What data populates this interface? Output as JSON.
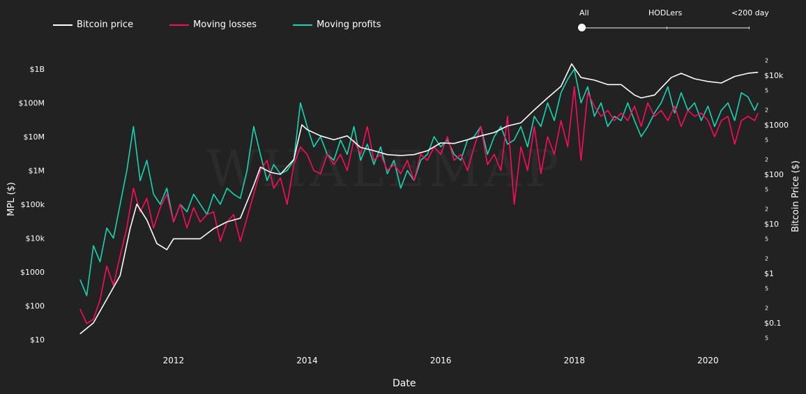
{
  "legend": {
    "btc_label": "Bitcoin price",
    "losses_label": "Moving losses",
    "profits_label": "Moving profits"
  },
  "slider": {
    "options": [
      "All",
      "HODLers",
      "<200 day"
    ],
    "selected": "All"
  },
  "colors": {
    "background": "#222222",
    "btc": "#ffffff",
    "losses": "#ff0a5f",
    "profits": "#15d6b4"
  },
  "watermark": "WHALEMAP",
  "chart_data": {
    "type": "line",
    "xlabel": "Date",
    "ylabel_left": "MPL ($)",
    "ylabel_right": "Bitcoin Price ($)",
    "y_scale": "log",
    "x_ticks": [
      "2012",
      "2014",
      "2016",
      "2018",
      "2020"
    ],
    "y_left_ticks": [
      "$10",
      "$100",
      "$1000",
      "$10k",
      "$100k",
      "$1M",
      "$10M",
      "$100M",
      "$1B"
    ],
    "y_left_values": [
      10,
      100,
      1000,
      10000,
      100000,
      1000000,
      10000000,
      100000000,
      1000000000
    ],
    "y_right_ticks": [
      "$0.1",
      "$1",
      "$10",
      "$100",
      "$1000",
      "$10k"
    ],
    "y_right_values": [
      0.1,
      1,
      10,
      100,
      1000,
      10000
    ],
    "y_right_minor_ticks": [
      "5",
      "2"
    ],
    "y_right_minor_values": [
      0.05,
      0.2,
      0.5,
      2,
      5,
      20,
      50,
      200,
      500,
      2000,
      5000,
      20000
    ],
    "x_range": [
      2010.55,
      2020.8
    ],
    "y_left_range": [
      10,
      3000000000
    ],
    "y_right_range": [
      0.04,
      25000
    ],
    "series": [
      {
        "name": "Bitcoin price",
        "axis": "right",
        "x": [
          2010.6,
          2010.8,
          2011.0,
          2011.2,
          2011.35,
          2011.45,
          2011.6,
          2011.75,
          2011.9,
          2012.0,
          2012.2,
          2012.4,
          2012.6,
          2012.8,
          2013.0,
          2013.2,
          2013.3,
          2013.45,
          2013.6,
          2013.8,
          2013.92,
          2014.0,
          2014.2,
          2014.4,
          2014.6,
          2014.8,
          2015.0,
          2015.2,
          2015.4,
          2015.6,
          2015.8,
          2016.0,
          2016.2,
          2016.4,
          2016.6,
          2016.8,
          2017.0,
          2017.2,
          2017.4,
          2017.6,
          2017.8,
          2017.96,
          2018.1,
          2018.3,
          2018.5,
          2018.7,
          2018.9,
          2019.0,
          2019.2,
          2019.45,
          2019.6,
          2019.8,
          2020.0,
          2020.2,
          2020.4,
          2020.6,
          2020.75
        ],
        "values": [
          0.06,
          0.1,
          0.3,
          0.9,
          8,
          25,
          12,
          4,
          3,
          5,
          5,
          5,
          8,
          11,
          13,
          60,
          140,
          110,
          100,
          200,
          1000,
          800,
          600,
          500,
          600,
          350,
          300,
          250,
          240,
          250,
          300,
          430,
          420,
          500,
          600,
          700,
          950,
          1100,
          2000,
          3500,
          6000,
          17000,
          9000,
          8000,
          6500,
          6500,
          4000,
          3500,
          4000,
          9000,
          11000,
          8500,
          7500,
          7000,
          9500,
          11000,
          11500
        ]
      },
      {
        "name": "Moving losses",
        "axis": "left",
        "x": [
          2010.6,
          2010.7,
          2010.8,
          2010.9,
          2011.0,
          2011.1,
          2011.2,
          2011.3,
          2011.4,
          2011.5,
          2011.6,
          2011.7,
          2011.8,
          2011.9,
          2012.0,
          2012.1,
          2012.2,
          2012.3,
          2012.4,
          2012.5,
          2012.6,
          2012.7,
          2012.8,
          2012.9,
          2013.0,
          2013.1,
          2013.2,
          2013.3,
          2013.4,
          2013.5,
          2013.6,
          2013.7,
          2013.8,
          2013.9,
          2014.0,
          2014.1,
          2014.2,
          2014.3,
          2014.4,
          2014.5,
          2014.6,
          2014.7,
          2014.8,
          2014.9,
          2015.0,
          2015.1,
          2015.2,
          2015.3,
          2015.4,
          2015.5,
          2015.6,
          2015.7,
          2015.8,
          2015.9,
          2016.0,
          2016.1,
          2016.2,
          2016.3,
          2016.4,
          2016.5,
          2016.6,
          2016.7,
          2016.8,
          2016.9,
          2017.0,
          2017.1,
          2017.2,
          2017.3,
          2017.4,
          2017.5,
          2017.6,
          2017.7,
          2017.8,
          2017.9,
          2018.0,
          2018.1,
          2018.2,
          2018.3,
          2018.4,
          2018.5,
          2018.6,
          2018.7,
          2018.8,
          2018.9,
          2019.0,
          2019.1,
          2019.2,
          2019.3,
          2019.4,
          2019.5,
          2019.6,
          2019.7,
          2019.8,
          2019.9,
          2020.0,
          2020.1,
          2020.2,
          2020.3,
          2020.4,
          2020.5,
          2020.6,
          2020.7,
          2020.75
        ],
        "values": [
          80,
          30,
          40,
          150,
          1500,
          400,
          3000,
          20000,
          300000,
          60000,
          150000,
          20000,
          80000,
          200000,
          30000,
          100000,
          20000,
          80000,
          30000,
          50000,
          60000,
          8000,
          30000,
          50000,
          8000,
          40000,
          200000,
          1000000,
          2000000,
          300000,
          600000,
          100000,
          1500000,
          5000000,
          3000000,
          1000000,
          800000,
          3000000,
          1500000,
          3000000,
          1000000,
          8000000,
          3000000,
          20000000,
          2000000,
          3000000,
          1000000,
          1500000,
          800000,
          2000000,
          500000,
          3000000,
          2000000,
          5000000,
          3000000,
          10000000,
          2000000,
          3000000,
          1000000,
          5000000,
          20000000,
          1500000,
          3000000,
          1000000,
          40000000,
          100000,
          5000000,
          1000000,
          20000000,
          800000,
          10000000,
          3000000,
          30000000,
          5000000,
          300000000,
          2000000,
          200000000,
          80000000,
          40000000,
          60000000,
          30000000,
          50000000,
          30000000,
          80000000,
          20000000,
          100000000,
          40000000,
          60000000,
          30000000,
          80000000,
          20000000,
          60000000,
          40000000,
          50000000,
          30000000,
          10000000,
          30000000,
          40000000,
          6000000,
          30000000,
          40000000,
          30000000,
          50000000
        ]
      },
      {
        "name": "Moving profits",
        "axis": "left",
        "x": [
          2010.6,
          2010.7,
          2010.8,
          2010.9,
          2011.0,
          2011.1,
          2011.2,
          2011.3,
          2011.4,
          2011.5,
          2011.6,
          2011.7,
          2011.8,
          2011.9,
          2012.0,
          2012.1,
          2012.2,
          2012.3,
          2012.4,
          2012.5,
          2012.6,
          2012.7,
          2012.8,
          2012.9,
          2013.0,
          2013.1,
          2013.2,
          2013.3,
          2013.4,
          2013.5,
          2013.6,
          2013.7,
          2013.8,
          2013.9,
          2014.0,
          2014.1,
          2014.2,
          2014.3,
          2014.4,
          2014.5,
          2014.6,
          2014.7,
          2014.8,
          2014.9,
          2015.0,
          2015.1,
          2015.2,
          2015.3,
          2015.4,
          2015.5,
          2015.6,
          2015.7,
          2015.8,
          2015.9,
          2016.0,
          2016.1,
          2016.2,
          2016.3,
          2016.4,
          2016.5,
          2016.6,
          2016.7,
          2016.8,
          2016.9,
          2017.0,
          2017.1,
          2017.2,
          2017.3,
          2017.4,
          2017.5,
          2017.6,
          2017.7,
          2017.8,
          2017.9,
          2018.0,
          2018.1,
          2018.2,
          2018.3,
          2018.4,
          2018.5,
          2018.6,
          2018.7,
          2018.8,
          2018.9,
          2019.0,
          2019.1,
          2019.2,
          2019.3,
          2019.4,
          2019.5,
          2019.6,
          2019.7,
          2019.8,
          2019.9,
          2020.0,
          2020.1,
          2020.2,
          2020.3,
          2020.4,
          2020.5,
          2020.6,
          2020.7,
          2020.75
        ],
        "values": [
          600,
          200,
          6000,
          2000,
          20000,
          10000,
          100000,
          1000000,
          20000000,
          500000,
          2000000,
          200000,
          100000,
          300000,
          30000,
          100000,
          60000,
          200000,
          100000,
          50000,
          200000,
          100000,
          300000,
          200000,
          150000,
          1000000,
          20000000,
          3000000,
          500000,
          1500000,
          800000,
          1000000,
          2000000,
          100000000,
          20000000,
          5000000,
          10000000,
          3000000,
          2000000,
          8000000,
          3000000,
          20000000,
          2000000,
          6000000,
          1500000,
          5000000,
          800000,
          2000000,
          300000,
          1000000,
          500000,
          2000000,
          3000000,
          10000000,
          5000000,
          8000000,
          3000000,
          2000000,
          8000000,
          10000000,
          20000000,
          3000000,
          10000000,
          20000000,
          6000000,
          8000000,
          20000000,
          5000000,
          40000000,
          20000000,
          100000000,
          30000000,
          200000000,
          500000000,
          1000000000,
          100000000,
          300000000,
          40000000,
          100000000,
          20000000,
          40000000,
          30000000,
          100000000,
          30000000,
          10000000,
          20000000,
          50000000,
          100000000,
          300000000,
          50000000,
          200000000,
          60000000,
          100000000,
          30000000,
          80000000,
          20000000,
          60000000,
          100000000,
          30000000,
          200000000,
          150000000,
          60000000,
          100000000
        ]
      }
    ]
  }
}
